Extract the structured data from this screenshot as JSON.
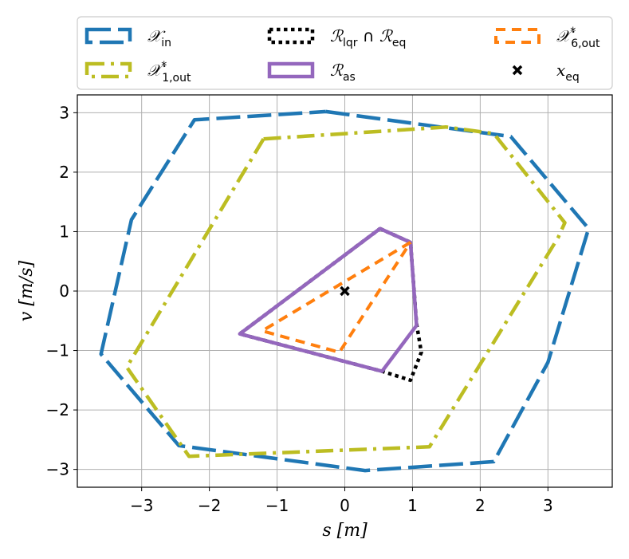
{
  "chart_data": {
    "type": "line",
    "xlabel": "s [m]",
    "ylabel": "v [m/s]",
    "xlim": [
      -3.95,
      3.95
    ],
    "ylim": [
      -3.3,
      3.3
    ],
    "xticks": [
      -3,
      -2,
      -1,
      0,
      1,
      2,
      3
    ],
    "yticks": [
      -3,
      -2,
      -1,
      0,
      1,
      2,
      3
    ],
    "xtick_labels": [
      "−3",
      "−2",
      "−1",
      "0",
      "1",
      "2",
      "3"
    ],
    "ytick_labels": [
      "−3",
      "−2",
      "−1",
      "0",
      "1",
      "2",
      "3"
    ],
    "grid": true,
    "legend_position": "top",
    "series": [
      {
        "name": "X_in",
        "legend": {
          "main": "𝒳",
          "sub": "in",
          "sup": ""
        },
        "color": "#1f77b4",
        "style": "dashed-long",
        "x": [
          -0.28,
          2.45,
          3.6,
          3.0,
          2.2,
          0.3,
          -2.45,
          -3.6,
          -3.15,
          -2.22,
          -0.28
        ],
        "y": [
          3.02,
          2.6,
          1.05,
          -1.2,
          -2.87,
          -3.02,
          -2.6,
          -1.06,
          1.2,
          2.88,
          3.02
        ]
      },
      {
        "name": "X*_1,out",
        "legend": {
          "main": "𝒳",
          "sub": "1,out",
          "sup": "*"
        },
        "color": "#bcbd22",
        "style": "dashdot",
        "x": [
          -1.2,
          1.5,
          2.2,
          3.25,
          3.15,
          1.25,
          -2.3,
          -3.22,
          -1.2
        ],
        "y": [
          2.56,
          2.76,
          2.65,
          1.15,
          0.9,
          -2.62,
          -2.78,
          -1.28,
          2.56
        ]
      },
      {
        "name": "R_lqr ∩ R_eq",
        "legend": {
          "main": "ℛ",
          "sub": "lqr",
          "sup": "",
          "main2": "ℛ",
          "sub2": "eq"
        },
        "color": "#000000",
        "style": "dotted",
        "x": [
          0.52,
          0.97,
          1.06,
          1.13,
          0.97,
          0.55,
          -1.55,
          0.52
        ],
        "y": [
          1.05,
          0.82,
          -0.55,
          -1.03,
          -1.5,
          -1.35,
          -0.72,
          1.05
        ]
      },
      {
        "name": "R_as",
        "legend": {
          "main": "ℛ",
          "sub": "as",
          "sup": ""
        },
        "color": "#9467bd",
        "style": "solid",
        "x": [
          0.52,
          0.97,
          1.06,
          0.55,
          -1.55,
          0.52
        ],
        "y": [
          1.05,
          0.82,
          -0.58,
          -1.35,
          -0.72,
          1.05
        ]
      },
      {
        "name": "X*_6,out",
        "legend": {
          "main": "𝒳",
          "sub": "6,out",
          "sup": "*"
        },
        "color": "#ff7f0e",
        "style": "dashed",
        "x": [
          0.97,
          -1.22,
          -0.08,
          0.97
        ],
        "y": [
          0.82,
          -0.67,
          -1.03,
          0.82
        ]
      }
    ],
    "markers": [
      {
        "name": "x_eq",
        "legend": {
          "main": "x",
          "sub": "eq",
          "sup": ""
        },
        "marker": "x",
        "color": "#000000",
        "x": [
          0.0
        ],
        "y": [
          0.0
        ]
      }
    ]
  }
}
